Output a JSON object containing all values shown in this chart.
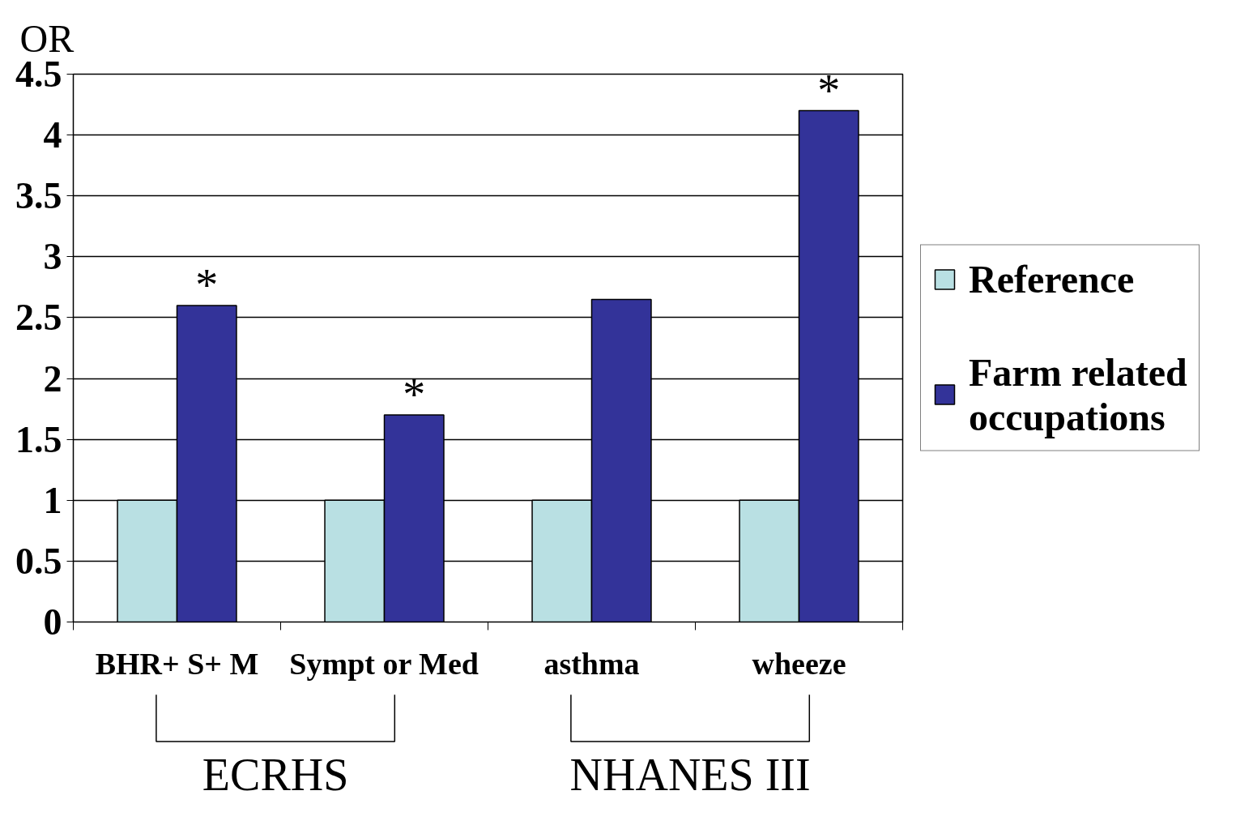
{
  "chart_data": {
    "type": "bar",
    "ylabel": "OR",
    "categories": [
      "BHR+ S+ M",
      "Sympt or Med",
      "asthma",
      "wheeze"
    ],
    "series": [
      {
        "name": "Reference",
        "color": "#b9e0e3",
        "values": [
          1,
          1,
          1,
          1
        ]
      },
      {
        "name": "Farm related occupations",
        "color": "#333399",
        "values": [
          2.6,
          1.7,
          2.65,
          4.2
        ]
      }
    ],
    "ylim": [
      0,
      4.5
    ],
    "yticks": [
      0,
      0.5,
      1,
      1.5,
      2,
      2.5,
      3,
      3.5,
      4,
      4.5
    ],
    "grid": "y",
    "legend": "right",
    "annotations": [
      {
        "text": "*",
        "x": "BHR+ S+ M",
        "y": 2.6
      },
      {
        "text": "*",
        "x": "Sympt or Med",
        "y": 1.7
      },
      {
        "text": "*",
        "x": "wheeze",
        "y": 4.2
      },
      "ECRHS",
      "NHANES III"
    ]
  }
}
